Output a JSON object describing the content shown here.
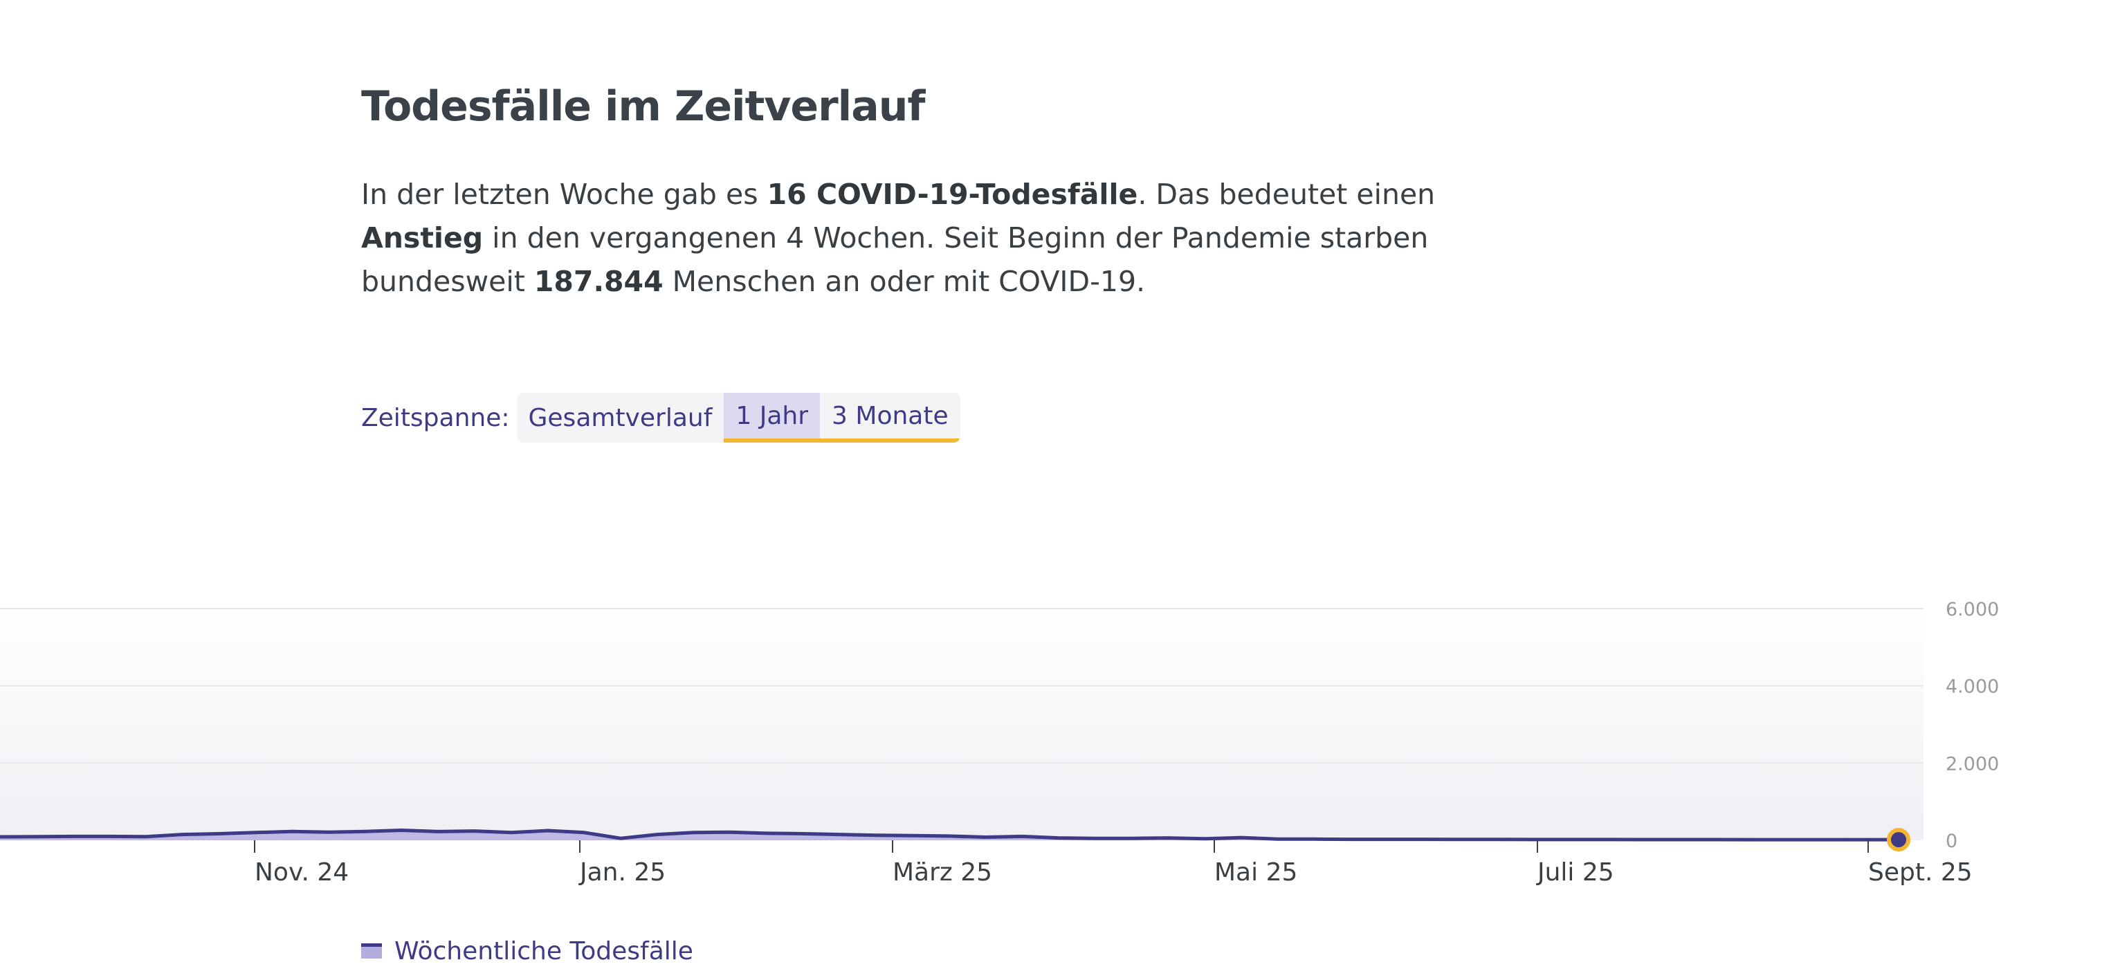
{
  "section": {
    "title": "Todesfälle im Zeitverlauf",
    "intro": {
      "part1": "In der letzten Woche gab es ",
      "bold1": "16 COVID-19-Todesfälle",
      "part2": ". Das bedeutet einen ",
      "bold2": "Anstieg",
      "part3": " in den vergangenen 4 Wochen. Seit Beginn der Pandemie starben bundesweit ",
      "bold3": "187.844",
      "part4": " Menschen an oder mit COVID-19."
    }
  },
  "range_selector": {
    "label": "Zeitspanne:",
    "options": [
      "Gesamtverlauf",
      "1 Jahr",
      "3 Monate"
    ],
    "selected": "1 Jahr"
  },
  "legend": {
    "label": "Wöchentliche Todesfälle"
  },
  "colors": {
    "line": "#3f3a86",
    "area": "#b4aee0",
    "accent": "#f2b632",
    "grid": "#e6e6ea"
  },
  "chart_data": {
    "type": "area",
    "x_ticks": [
      "Nov. 24",
      "Jan. 25",
      "März 25",
      "Mai 25",
      "Juli 25",
      "Sept. 25"
    ],
    "y_ticks": [
      "0",
      "2.000",
      "4.000",
      "6.000"
    ],
    "ylim": [
      0,
      6000
    ],
    "grid": true,
    "series": [
      {
        "name": "Wöchentliche Todesfälle",
        "values": [
          90,
          95,
          100,
          100,
          95,
          150,
          170,
          200,
          230,
          210,
          230,
          260,
          225,
          240,
          200,
          250,
          200,
          50,
          150,
          200,
          210,
          180,
          170,
          150,
          130,
          120,
          110,
          80,
          100,
          60,
          50,
          50,
          60,
          40,
          70,
          30,
          30,
          25,
          25,
          25,
          22,
          22,
          20,
          20,
          20,
          18,
          18,
          18,
          17,
          17,
          16,
          16,
          16
        ]
      }
    ],
    "last_value": 16
  }
}
